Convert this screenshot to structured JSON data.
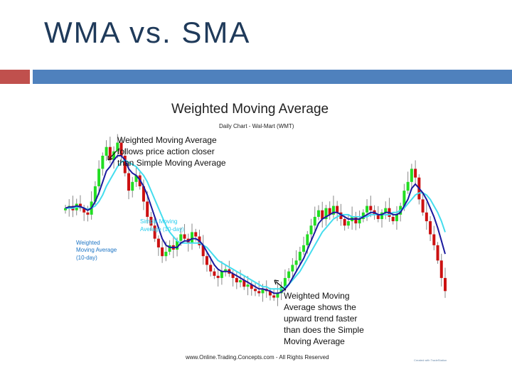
{
  "slide": {
    "title": "WMA vs. SMA",
    "accent_red": "#c0504d",
    "accent_blue": "#4f81bd"
  },
  "chart_data": {
    "type": "candlestick",
    "title": "Weighted Moving Average",
    "subtitle": "Daily Chart - Wal-Mart (WMT)",
    "footer": "www.Online.Trading.Concepts.com - All Rights Reserved",
    "watermark": "Created with TradeStation",
    "colors": {
      "up": "#22dd22",
      "down": "#cc1111",
      "wma": "#1a1a9e",
      "sma": "#44ddee",
      "label_blue": "#1c74c4"
    },
    "annotations": {
      "top_left": [
        "Weighted Moving Average",
        "follows price action closer",
        "than Simple Moving Average"
      ],
      "sma_label": [
        "Simple Moving",
        "Average (10-day)"
      ],
      "wma_label": [
        "Weighted",
        "Moving Average",
        "(10-day)"
      ],
      "bottom_right": [
        "Weighted Moving",
        "Average shows the",
        "upward trend faster",
        "than does the Simple",
        "Moving Average"
      ]
    },
    "ylim": [
      0,
      100
    ],
    "closes": [
      62,
      63,
      61,
      64,
      62,
      60,
      59,
      65,
      72,
      80,
      86,
      90,
      84,
      88,
      92,
      86,
      78,
      70,
      74,
      77,
      72,
      65,
      58,
      54,
      48,
      44,
      40,
      42,
      45,
      43,
      47,
      50,
      48,
      46,
      51,
      49,
      45,
      40,
      36,
      33,
      31,
      30,
      33,
      34,
      32,
      30,
      28,
      29,
      26,
      27,
      25,
      24,
      23,
      25,
      24,
      22,
      21,
      23,
      26,
      30,
      33,
      36,
      38,
      42,
      45,
      50,
      54,
      58,
      61,
      57,
      62,
      59,
      63,
      60,
      57,
      54,
      56,
      58,
      55,
      57,
      60,
      63,
      61,
      59,
      57,
      60,
      62,
      58,
      56,
      59,
      63,
      70,
      74,
      80,
      76,
      66,
      60,
      56,
      50,
      45,
      38,
      30,
      24
    ],
    "wma": [
      62,
      62.5,
      62.5,
      63,
      62.7,
      62,
      61,
      62,
      65,
      69,
      74,
      79,
      81,
      84,
      86,
      86,
      84,
      80,
      78,
      77,
      75,
      72,
      68,
      63,
      58,
      53,
      48,
      45,
      44,
      44,
      44,
      46,
      47,
      47,
      48,
      48,
      47,
      45,
      42,
      39,
      36,
      34,
      33,
      33,
      33,
      32,
      31,
      30,
      29,
      28,
      27,
      26,
      25,
      25,
      24.5,
      24,
      23,
      23,
      23.5,
      25,
      27,
      30,
      33,
      36,
      39,
      43,
      47,
      51,
      55,
      57,
      58,
      59,
      60,
      60,
      59,
      58,
      57,
      57,
      57,
      57,
      58,
      59,
      60,
      60,
      59,
      59,
      60,
      60,
      59,
      59,
      60,
      63,
      66,
      71,
      73,
      71,
      69,
      66,
      62,
      58,
      53,
      47,
      41
    ],
    "sma": [
      62,
      62,
      62,
      62.5,
      62.5,
      62,
      61.5,
      62,
      63,
      65,
      68,
      72,
      75,
      78,
      81,
      83,
      84,
      83,
      82,
      81,
      79,
      77,
      74,
      70,
      66,
      62,
      58,
      54,
      51,
      49,
      47,
      46,
      46,
      46,
      46,
      46,
      46,
      45,
      44,
      42,
      40,
      38,
      37,
      36,
      35,
      34,
      33,
      32,
      31,
      30,
      29,
      28,
      27,
      26,
      26,
      25,
      25,
      25,
      25,
      26,
      27,
      29,
      31,
      33,
      36,
      39,
      42,
      45,
      48,
      51,
      53,
      55,
      57,
      58,
      59,
      59,
      59,
      58,
      58,
      58,
      58,
      58,
      59,
      59,
      59,
      59,
      59,
      59,
      60,
      60,
      61,
      62,
      64,
      66,
      68,
      69,
      69,
      68,
      66,
      63,
      60,
      56,
      51
    ]
  }
}
